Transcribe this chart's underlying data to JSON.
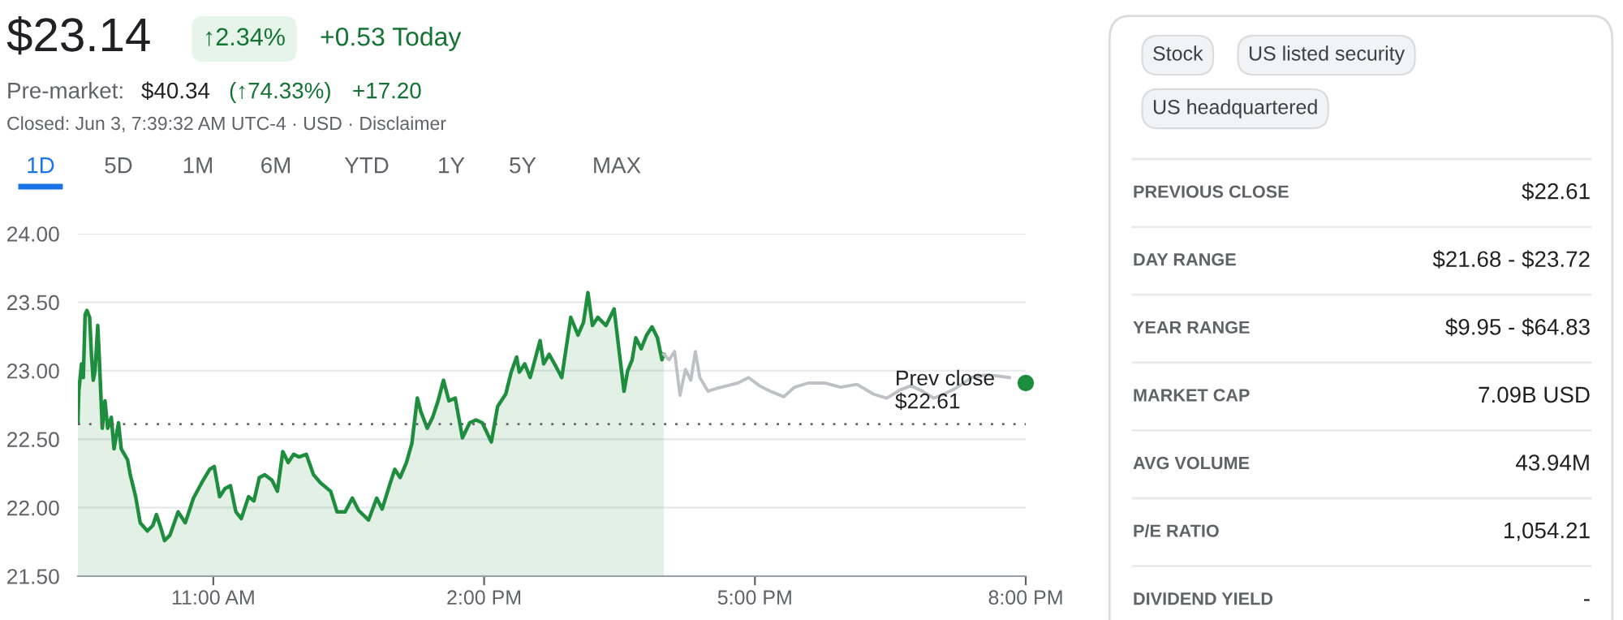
{
  "chart_data": [
    {
      "type": "line",
      "annotations": [
        "$23.14",
        "↑2.34%",
        "+0.53 Today",
        "Pre-market:",
        "$40.34",
        "(↑74.33%)",
        "+17.20",
        "Closed: Jun 3, 7:39:32 AM UTC-4 · USD · Disclaimer",
        "1D",
        "5D",
        "1M",
        "6M",
        "YTD",
        "1Y",
        "5Y",
        "MAX"
      ],
      "xlim": [
        9.5,
        20
      ],
      "xticks": [
        {
          "value": 11,
          "label": "11:00 AM"
        },
        {
          "value": 14,
          "label": "2:00 PM"
        },
        {
          "value": 17,
          "label": "5:00 PM"
        },
        {
          "value": 20,
          "label": "8:00 PM"
        }
      ],
      "ylim": [
        21.5,
        24.0
      ],
      "yticks": [
        {
          "value": 21.5,
          "label": "21.50"
        },
        {
          "value": 22.0,
          "label": "22.00"
        },
        {
          "value": 22.5,
          "label": "22.50"
        },
        {
          "value": 23.0,
          "label": "23.00"
        },
        {
          "value": 23.5,
          "label": "23.50"
        },
        {
          "value": 24.0,
          "label": "24.00"
        }
      ],
      "grid": "y",
      "ref_lines": [
        {
          "axis": "y",
          "value": 22.61,
          "label": "Prev close\n$22.61",
          "line_style": "dotted",
          "color": "#5f6368"
        }
      ],
      "series": [
        {
          "type": "area",
          "color": "#1e8e3e",
          "x": [
            9.5,
            9.51,
            9.54,
            9.56,
            9.58,
            9.6,
            9.63,
            9.65,
            9.67,
            9.69,
            9.72,
            9.74,
            9.77,
            9.8,
            9.83,
            9.87,
            9.9,
            9.95,
            9.98,
            10.05,
            10.08,
            10.14,
            10.19,
            10.27,
            10.33,
            10.37,
            10.42,
            10.46,
            10.52,
            10.61,
            10.69,
            10.78,
            10.87,
            10.96,
            11.01,
            11.07,
            11.13,
            11.19,
            11.25,
            11.31,
            11.39,
            11.45,
            11.51,
            11.57,
            11.65,
            11.71,
            11.77,
            11.83,
            11.89,
            11.95,
            12.03,
            12.11,
            12.19,
            12.3,
            12.37,
            12.46,
            12.54,
            12.61,
            12.72,
            12.81,
            12.87,
            12.96,
            13.01,
            13.07,
            13.14,
            13.2,
            13.26,
            13.3,
            13.37,
            13.43,
            13.49,
            13.55,
            13.61,
            13.68,
            13.76,
            13.84,
            13.91,
            13.98,
            14.08,
            14.15,
            14.24,
            14.3,
            14.36,
            14.39,
            14.45,
            14.51,
            14.62,
            14.66,
            14.72,
            14.78,
            14.86,
            14.96,
            15.04,
            15.1,
            15.15,
            15.2,
            15.26,
            15.35,
            15.44,
            15.5,
            15.55,
            15.59,
            15.64,
            15.68,
            15.74,
            15.8,
            15.86,
            15.92,
            15.97,
            15.99
          ],
          "values": [
            22.62,
            22.85,
            23.05,
            22.95,
            23.41,
            23.44,
            23.39,
            23.12,
            22.93,
            23.0,
            23.33,
            23.05,
            22.58,
            22.78,
            22.58,
            22.66,
            22.43,
            22.62,
            22.43,
            22.35,
            22.24,
            22.08,
            21.89,
            21.83,
            21.87,
            21.95,
            21.85,
            21.76,
            21.8,
            21.97,
            21.89,
            22.07,
            22.18,
            22.28,
            22.3,
            22.08,
            22.14,
            22.16,
            21.97,
            21.92,
            22.08,
            22.05,
            22.22,
            22.24,
            22.2,
            22.12,
            22.41,
            22.33,
            22.39,
            22.37,
            22.39,
            22.24,
            22.18,
            22.12,
            21.97,
            21.97,
            22.07,
            21.98,
            21.91,
            22.07,
            21.99,
            22.18,
            22.28,
            22.22,
            22.33,
            22.47,
            22.8,
            22.7,
            22.58,
            22.66,
            22.78,
            22.93,
            22.78,
            22.8,
            22.51,
            22.62,
            22.64,
            22.62,
            22.48,
            22.74,
            22.83,
            22.99,
            23.1,
            22.99,
            23.05,
            22.95,
            23.22,
            23.05,
            23.12,
            23.05,
            22.95,
            23.39,
            23.26,
            23.35,
            23.57,
            23.33,
            23.39,
            23.33,
            23.45,
            23.12,
            22.85,
            23.0,
            23.08,
            23.24,
            23.16,
            23.26,
            23.32,
            23.24,
            23.08,
            23.12
          ]
        },
        {
          "type": "line",
          "color": "#bdc1c6",
          "x": [
            15.99,
            16.05,
            16.11,
            16.17,
            16.23,
            16.29,
            16.34,
            16.39,
            16.48,
            16.57,
            16.69,
            16.81,
            16.93,
            17.05,
            17.17,
            17.32,
            17.44,
            17.59,
            17.77,
            17.95,
            18.13,
            18.31,
            18.46,
            18.61,
            18.73,
            18.86,
            18.98,
            19.1,
            19.22,
            19.4,
            19.58,
            19.82
          ],
          "values": [
            23.12,
            23.08,
            23.14,
            22.82,
            23.01,
            22.93,
            23.14,
            22.95,
            22.85,
            22.87,
            22.89,
            22.91,
            22.95,
            22.89,
            22.85,
            22.81,
            22.88,
            22.91,
            22.91,
            22.88,
            22.9,
            22.83,
            22.8,
            22.86,
            22.89,
            22.85,
            22.8,
            22.83,
            22.87,
            22.95,
            22.97,
            22.95
          ]
        },
        {
          "type": "scatter",
          "color": "#1e8e3e",
          "x": [
            20.0
          ],
          "values": [
            22.91
          ]
        }
      ]
    },
    {
      "type": "other",
      "annotations": [
        "Stock",
        "US listed security",
        "US headquartered",
        "PREVIOUS CLOSE",
        "$22.61",
        "DAY RANGE",
        "$21.68 - $23.72",
        "YEAR RANGE",
        "$9.95 - $64.83",
        "MARKET CAP",
        "7.09B USD",
        "AVG VOLUME",
        "43.94M",
        "P/E RATIO",
        "1,054.21",
        "DIVIDEND YIELD",
        "-"
      ]
    }
  ]
}
